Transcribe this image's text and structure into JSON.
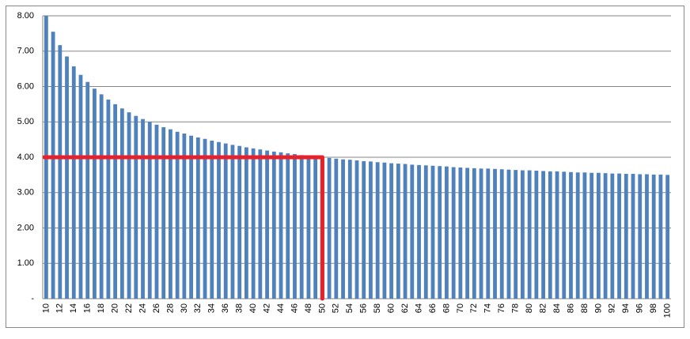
{
  "chart_data": {
    "type": "bar",
    "color": "#4f81bd",
    "grid": true,
    "categories": [
      "10",
      null,
      "12",
      null,
      "14",
      null,
      "16",
      null,
      "18",
      null,
      "20",
      null,
      "22",
      null,
      "24",
      null,
      "26",
      null,
      "28",
      null,
      "30",
      null,
      "32",
      null,
      "34",
      null,
      "36",
      null,
      "38",
      null,
      "40",
      null,
      "42",
      null,
      "44",
      null,
      "46",
      null,
      "48",
      null,
      "50",
      null,
      "52",
      null,
      "54",
      null,
      "56",
      null,
      "58",
      null,
      "60",
      null,
      "62",
      null,
      "64",
      null,
      "66",
      null,
      "68",
      null,
      "70",
      null,
      "72",
      null,
      "74",
      null,
      "76",
      null,
      "78",
      null,
      "80",
      null,
      "82",
      null,
      "84",
      null,
      "86",
      null,
      "88",
      null,
      "90",
      null,
      "92",
      null,
      "94",
      null,
      "96",
      null,
      "98",
      null,
      "100"
    ],
    "values": [
      8,
      7.55,
      7.17,
      6.85,
      6.57,
      6.33,
      6.13,
      5.94,
      5.78,
      5.63,
      5.5,
      5.38,
      5.27,
      5.17,
      5.08,
      5,
      4.92,
      4.85,
      4.79,
      4.72,
      4.67,
      4.61,
      4.56,
      4.52,
      4.47,
      4.43,
      4.39,
      4.35,
      4.32,
      4.28,
      4.25,
      4.22,
      4.19,
      4.16,
      4.14,
      4.11,
      4.09,
      4.06,
      4.04,
      4.02,
      4,
      3.98,
      3.96,
      3.94,
      3.93,
      3.91,
      3.89,
      3.88,
      3.86,
      3.85,
      3.83,
      3.82,
      3.81,
      3.79,
      3.78,
      3.77,
      3.76,
      3.75,
      3.74,
      3.72,
      3.71,
      3.7,
      3.69,
      3.68,
      3.68,
      3.67,
      3.66,
      3.65,
      3.64,
      3.63,
      3.63,
      3.62,
      3.61,
      3.6,
      3.6,
      3.59,
      3.58,
      3.57,
      3.57,
      3.56,
      3.56,
      3.55,
      3.54,
      3.54,
      3.53,
      3.53,
      3.52,
      3.52,
      3.51,
      3.51,
      3.5
    ],
    "ylim": [
      0,
      8
    ],
    "yticks": [
      {
        "value": 0,
        "label": "-"
      },
      {
        "value": 1,
        "label": "1.00"
      },
      {
        "value": 2,
        "label": "2.00"
      },
      {
        "value": 3,
        "label": "3.00"
      },
      {
        "value": 4,
        "label": "4.00"
      },
      {
        "value": 5,
        "label": "5.00"
      },
      {
        "value": 6,
        "label": "6.00"
      },
      {
        "value": 7,
        "label": "7.00"
      },
      {
        "value": 8,
        "label": "8.00"
      }
    ],
    "reference": {
      "x": "50",
      "y": 4,
      "color": "#e8202a"
    }
  }
}
